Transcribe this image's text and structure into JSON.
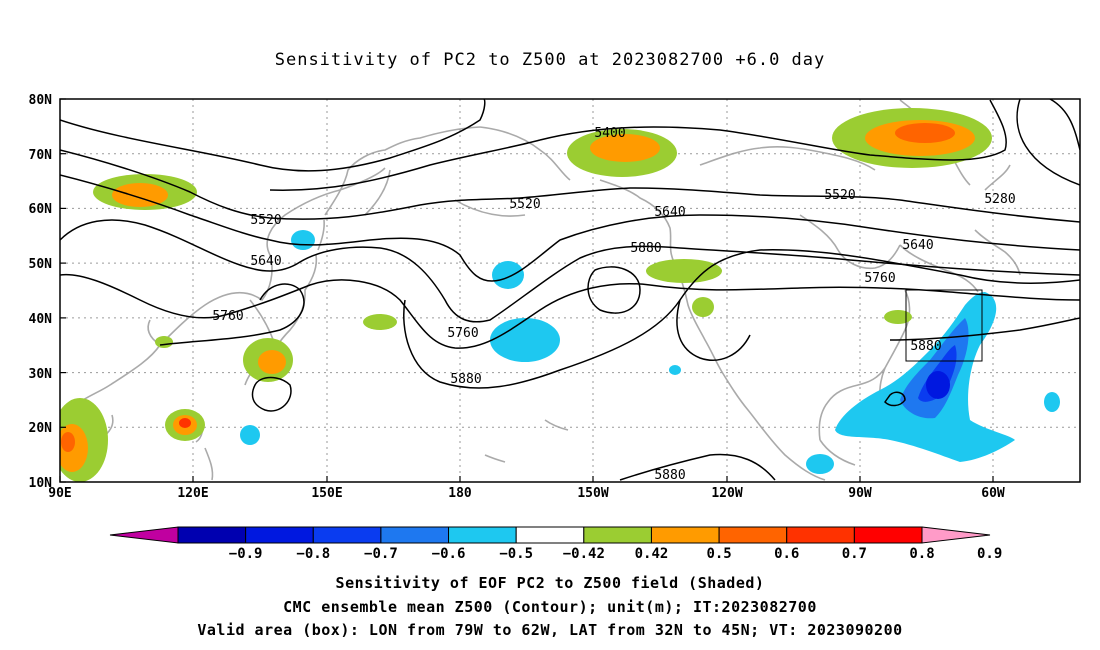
{
  "title": "Sensitivity of PC2 to Z500 at 2023082700 +6.0 day",
  "map": {
    "lon_range": [
      "90E",
      "40W"
    ],
    "lat_range": [
      "10N",
      "80N"
    ],
    "lat_ticks": [
      "80N",
      "70N",
      "60N",
      "50N",
      "40N",
      "30N",
      "20N",
      "10N"
    ],
    "lon_ticks": [
      "90E",
      "120E",
      "150E",
      "180",
      "150W",
      "120W",
      "90W",
      "60W"
    ],
    "contour_labels": [
      "5400",
      "5520",
      "5520",
      "5520",
      "5640",
      "5640",
      "5640",
      "5760",
      "5760",
      "5760",
      "5880",
      "5880",
      "5880",
      "5880",
      "5280"
    ],
    "valid_area_box": {
      "lon": [
        "79W",
        "62W"
      ],
      "lat": [
        "32N",
        "45N"
      ]
    }
  },
  "colorbar": {
    "labels": [
      "-0.9",
      "-0.8",
      "-0.7",
      "-0.6",
      "-0.5",
      "-0.42",
      "0.42",
      "0.5",
      "0.6",
      "0.7",
      "0.8",
      "0.9"
    ],
    "colors": [
      "#c000a0",
      "#0000b0",
      "#0018e0",
      "#0a3cf0",
      "#1e78f0",
      "#1ec8f0",
      "#ffffff",
      "#9bcd32",
      "#ff9b00",
      "#ff6400",
      "#ff3200",
      "#ff0000",
      "#ff9bc8"
    ]
  },
  "captions": {
    "line1": "Sensitivity of EOF PC2 to Z500 field (Shaded)",
    "line2": "CMC ensemble mean Z500 (Contour); unit(m); IT:2023082700",
    "line3": "Valid area (box): LON from 79W to 62W, LAT from 32N to 45N; VT: 2023090200"
  }
}
